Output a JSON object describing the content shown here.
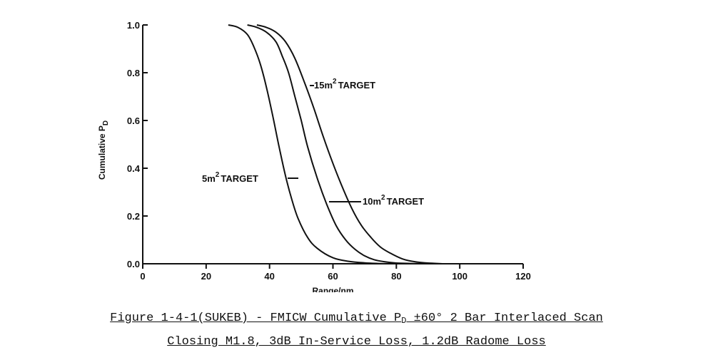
{
  "chart_data": {
    "type": "line",
    "xlabel": "Range/nm",
    "ylabel": "Cumulative P",
    "ylabel_sub": "D",
    "xlim": [
      0,
      120
    ],
    "ylim": [
      0,
      1.0
    ],
    "x_ticks": [
      "0",
      "20",
      "40",
      "60",
      "80",
      "100",
      "120"
    ],
    "y_ticks": [
      "0.0",
      "0.2",
      "0.4",
      "0.6",
      "0.8",
      "1.0"
    ],
    "grid": false,
    "series": [
      {
        "name": "5m² TARGET",
        "label_prefix": "5m",
        "label_sup": "2",
        "label_suffix": "TARGET",
        "x": [
          27,
          30,
          33,
          35,
          37,
          39,
          41,
          43,
          45,
          47,
          49,
          52,
          55,
          60,
          65,
          70,
          75,
          80,
          85
        ],
        "y": [
          1.0,
          0.99,
          0.96,
          0.91,
          0.84,
          0.74,
          0.62,
          0.49,
          0.37,
          0.27,
          0.19,
          0.11,
          0.065,
          0.025,
          0.01,
          0.004,
          0.001,
          0.0,
          0.0
        ]
      },
      {
        "name": "10m² TARGET",
        "label_prefix": "10m",
        "label_sup": "2",
        "label_suffix": "TARGET",
        "x": [
          33,
          36,
          39,
          42,
          44,
          46,
          48,
          50,
          52,
          55,
          58,
          61,
          64,
          67,
          70,
          73,
          76,
          80,
          85,
          90
        ],
        "y": [
          1.0,
          0.99,
          0.97,
          0.93,
          0.87,
          0.8,
          0.7,
          0.6,
          0.49,
          0.36,
          0.25,
          0.16,
          0.1,
          0.06,
          0.033,
          0.017,
          0.009,
          0.003,
          0.001,
          0.0
        ]
      },
      {
        "name": "15m² TARGET",
        "label_prefix": "15m",
        "label_sup": "2",
        "label_suffix": "TARGET",
        "x": [
          36,
          39,
          42,
          45,
          48,
          51,
          54,
          57,
          60,
          63,
          66,
          69,
          72,
          75,
          78,
          82,
          86,
          90,
          95
        ],
        "y": [
          1.0,
          0.99,
          0.97,
          0.93,
          0.86,
          0.76,
          0.65,
          0.53,
          0.42,
          0.32,
          0.23,
          0.16,
          0.11,
          0.07,
          0.045,
          0.02,
          0.008,
          0.003,
          0.0
        ]
      }
    ]
  },
  "caption": {
    "line1_pre": "Figure 1-4-1(SUKEB) - FMICW Cumulative P",
    "line1_sub": "D",
    "line1_post": " ±60° 2 Bar Interlaced Scan",
    "line2": "Closing M1.8, 3dB In-Service Loss, 1.2dB Radome Loss"
  }
}
